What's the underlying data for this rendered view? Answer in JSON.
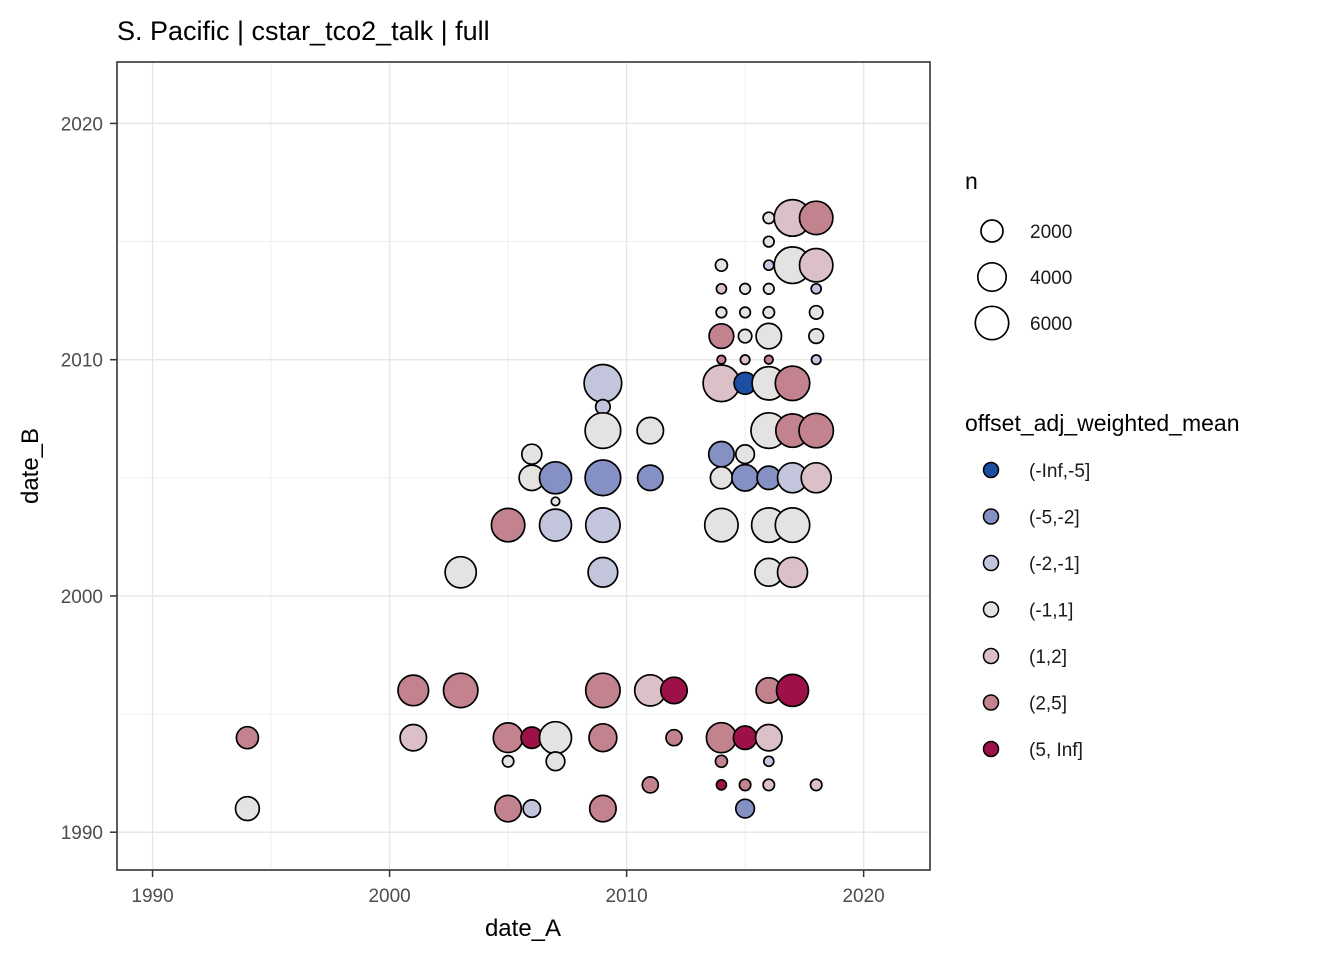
{
  "chart_data": {
    "type": "scatter",
    "title": "S. Pacific | cstar_tco2_talk | full",
    "xlabel": "date_A",
    "ylabel": "date_B",
    "xlim": [
      1988.5,
      2022.8
    ],
    "ylim": [
      1988.4,
      2022.6
    ],
    "x_major_ticks": [
      1990,
      2000,
      2010,
      2020
    ],
    "y_major_ticks": [
      1990,
      2000,
      2010,
      2020
    ],
    "x_minor_gridlines": [
      1995,
      2005,
      2015
    ],
    "y_minor_gridlines": [
      1995,
      2005,
      2015
    ],
    "grid": true,
    "legend_position": "right",
    "size_legend": {
      "title": "n",
      "values": [
        2000,
        4000,
        6000
      ]
    },
    "color_legend": {
      "title": "offset_adj_weighted_mean",
      "bins": [
        {
          "label": "(-Inf,-5]",
          "color": "#1C4FA1"
        },
        {
          "label": "(-5,-2]",
          "color": "#8591C5"
        },
        {
          "label": "(-2,-1]",
          "color": "#C2C5DC"
        },
        {
          "label": "(-1,1]",
          "color": "#E4E3E2"
        },
        {
          "label": "(1,2]",
          "color": "#DCC0C8"
        },
        {
          "label": "(2,5]",
          "color": "#C2838F"
        },
        {
          "label": "(5, Inf]",
          "color": "#9E1148"
        }
      ]
    },
    "series": [
      {
        "name": "station-pairs",
        "columns": [
          "date_A",
          "date_B",
          "offset_bin_index",
          "n"
        ],
        "points": [
          [
            1994,
            1994,
            5,
            2000
          ],
          [
            1994,
            1991,
            3,
            2500
          ],
          [
            2001,
            1996,
            5,
            4800
          ],
          [
            2001,
            1994,
            4,
            3300
          ],
          [
            2003,
            2001,
            3,
            5100
          ],
          [
            2003,
            1996,
            5,
            6500
          ],
          [
            2005,
            2003,
            5,
            6000
          ],
          [
            2005,
            1994,
            5,
            4400
          ],
          [
            2005,
            1993,
            3,
            200
          ],
          [
            2005,
            1991,
            5,
            3300
          ],
          [
            2006,
            2006,
            3,
            1500
          ],
          [
            2006,
            2005,
            3,
            3000
          ],
          [
            2006,
            1994,
            6,
            1850
          ],
          [
            2006,
            1991,
            2,
            1000
          ],
          [
            2007,
            2005,
            1,
            5400
          ],
          [
            2007,
            2004,
            3,
            30
          ],
          [
            2007,
            2003,
            2,
            5400
          ],
          [
            2007,
            1994,
            3,
            5400
          ],
          [
            2007,
            1993,
            3,
            1200
          ],
          [
            2009,
            2009,
            2,
            8000
          ],
          [
            2009,
            2008,
            2,
            550
          ],
          [
            2009,
            2007,
            3,
            7000
          ],
          [
            2009,
            2005,
            1,
            7000
          ],
          [
            2009,
            2003,
            2,
            6500
          ],
          [
            2009,
            2001,
            2,
            4400
          ],
          [
            2009,
            1996,
            5,
            6500
          ],
          [
            2009,
            1994,
            5,
            3800
          ],
          [
            2009,
            1991,
            5,
            3300
          ],
          [
            2011,
            2007,
            3,
            3300
          ],
          [
            2011,
            2005,
            1,
            3000
          ],
          [
            2011,
            1996,
            4,
            5100
          ],
          [
            2011,
            1992,
            5,
            750
          ],
          [
            2012,
            1996,
            6,
            3300
          ],
          [
            2012,
            1994,
            5,
            750
          ],
          [
            2014,
            2014,
            3,
            250
          ],
          [
            2014,
            2013,
            4,
            100
          ],
          [
            2014,
            2012,
            3,
            140
          ],
          [
            2014,
            2011,
            5,
            2700
          ],
          [
            2014,
            2010,
            5,
            40
          ],
          [
            2014,
            2009,
            4,
            7500
          ],
          [
            2014,
            2006,
            1,
            3000
          ],
          [
            2014,
            2005,
            3,
            2000
          ],
          [
            2014,
            2003,
            3,
            6000
          ],
          [
            2014,
            1994,
            5,
            4600
          ],
          [
            2014,
            1993,
            5,
            250
          ],
          [
            2014,
            1992,
            6,
            100
          ],
          [
            2015,
            2013,
            3,
            140
          ],
          [
            2015,
            2012,
            3,
            140
          ],
          [
            2015,
            2011,
            3,
            400
          ],
          [
            2015,
            2010,
            4,
            70
          ],
          [
            2015,
            2009,
            0,
            2000
          ],
          [
            2015,
            2006,
            3,
            1200
          ],
          [
            2015,
            2005,
            1,
            3300
          ],
          [
            2015,
            1994,
            6,
            2400
          ],
          [
            2015,
            1992,
            5,
            200
          ],
          [
            2015,
            1991,
            1,
            1200
          ],
          [
            2016,
            2016,
            3,
            200
          ],
          [
            2016,
            2015,
            3,
            140
          ],
          [
            2016,
            2014,
            2,
            100
          ],
          [
            2016,
            2013,
            3,
            140
          ],
          [
            2016,
            2012,
            3,
            200
          ],
          [
            2016,
            2011,
            3,
            3000
          ],
          [
            2016,
            2010,
            5,
            40
          ],
          [
            2016,
            2009,
            3,
            6000
          ],
          [
            2016,
            2007,
            3,
            7000
          ],
          [
            2016,
            2005,
            1,
            2400
          ],
          [
            2016,
            2003,
            3,
            6500
          ],
          [
            2016,
            2001,
            3,
            3800
          ],
          [
            2016,
            1996,
            5,
            3000
          ],
          [
            2016,
            1994,
            4,
            3300
          ],
          [
            2016,
            1993,
            2,
            100
          ],
          [
            2016,
            1992,
            4,
            200
          ],
          [
            2017,
            2016,
            4,
            7500
          ],
          [
            2017,
            2014,
            3,
            7500
          ],
          [
            2017,
            2009,
            5,
            6500
          ],
          [
            2017,
            2007,
            5,
            6000
          ],
          [
            2017,
            2005,
            2,
            4600
          ],
          [
            2017,
            2003,
            3,
            6500
          ],
          [
            2017,
            2001,
            4,
            4600
          ],
          [
            2017,
            1996,
            6,
            5400
          ],
          [
            2018,
            2016,
            5,
            6000
          ],
          [
            2018,
            2014,
            4,
            6000
          ],
          [
            2018,
            2013,
            2,
            100
          ],
          [
            2018,
            2012,
            3,
            400
          ],
          [
            2018,
            2011,
            3,
            550
          ],
          [
            2018,
            2010,
            2,
            70
          ],
          [
            2018,
            2007,
            5,
            6500
          ],
          [
            2018,
            2005,
            4,
            4600
          ],
          [
            2018,
            1992,
            4,
            200
          ]
        ]
      }
    ]
  }
}
